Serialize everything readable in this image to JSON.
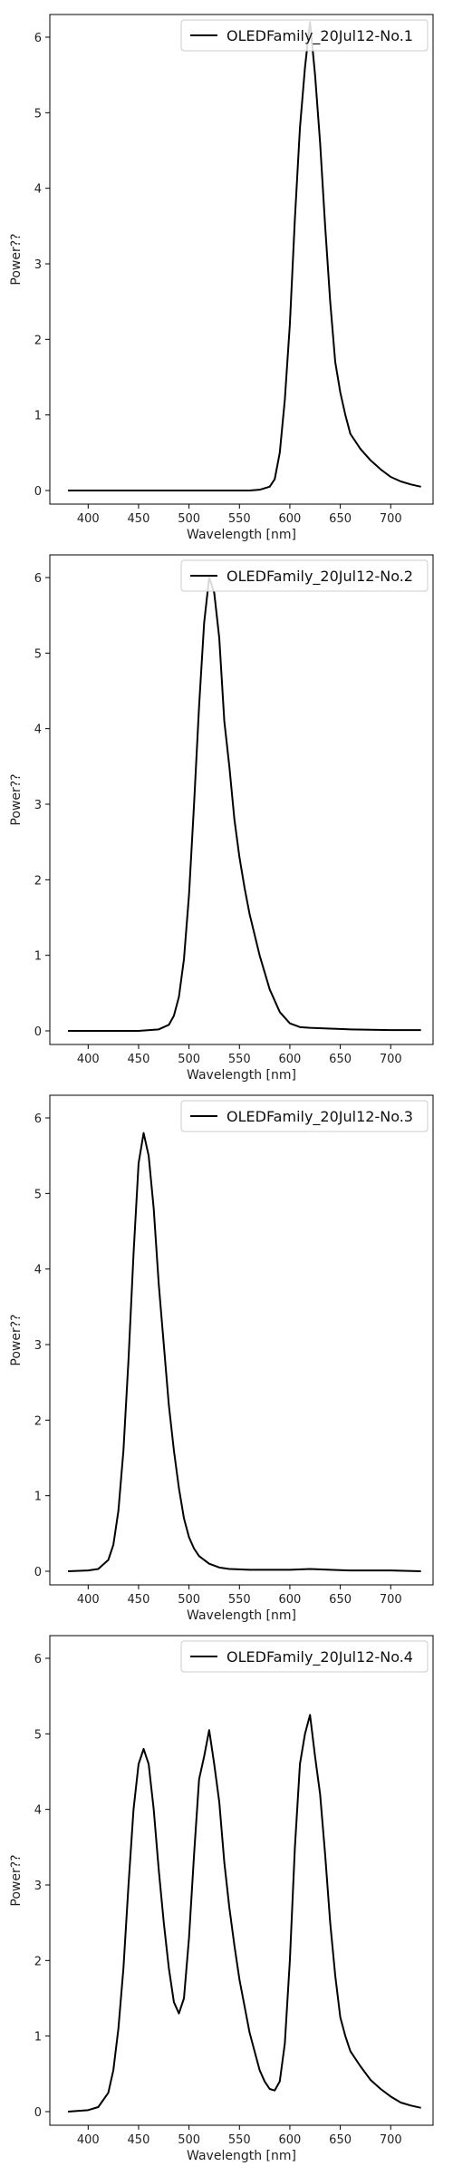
{
  "chart_data": [
    {
      "type": "line",
      "xlabel": "Wavelength [nm]",
      "ylabel": "Power??",
      "xlim": [
        362,
        742
      ],
      "ylim": [
        -0.18,
        6.3
      ],
      "xticks": [
        400,
        450,
        500,
        550,
        600,
        650,
        700
      ],
      "yticks": [
        0,
        1,
        2,
        3,
        4,
        5,
        6
      ],
      "legend_position": "top-right",
      "series": [
        {
          "name": "OLEDFamily_20Jul12-No.1",
          "color": "#000000",
          "x": [
            380,
            560,
            570,
            580,
            585,
            590,
            595,
            600,
            605,
            610,
            615,
            620,
            625,
            630,
            635,
            640,
            645,
            650,
            655,
            660,
            670,
            680,
            690,
            700,
            710,
            720,
            730
          ],
          "y": [
            0,
            0,
            0.01,
            0.05,
            0.15,
            0.5,
            1.2,
            2.2,
            3.6,
            4.8,
            5.6,
            6.2,
            5.5,
            4.6,
            3.5,
            2.5,
            1.7,
            1.3,
            1.0,
            0.75,
            0.55,
            0.4,
            0.28,
            0.18,
            0.12,
            0.08,
            0.05
          ]
        }
      ]
    },
    {
      "type": "line",
      "xlabel": "Wavelength [nm]",
      "ylabel": "Power??",
      "xlim": [
        362,
        742
      ],
      "ylim": [
        -0.18,
        6.3
      ],
      "xticks": [
        400,
        450,
        500,
        550,
        600,
        650,
        700
      ],
      "yticks": [
        0,
        1,
        2,
        3,
        4,
        5,
        6
      ],
      "legend_position": "top-right",
      "series": [
        {
          "name": "OLEDFamily_20Jul12-No.2",
          "color": "#000000",
          "x": [
            380,
            450,
            470,
            480,
            485,
            490,
            495,
            500,
            505,
            510,
            515,
            520,
            525,
            530,
            535,
            540,
            545,
            550,
            555,
            560,
            570,
            580,
            590,
            600,
            610,
            620,
            640,
            660,
            700,
            730
          ],
          "y": [
            0,
            0,
            0.02,
            0.08,
            0.2,
            0.45,
            0.95,
            1.8,
            3.0,
            4.3,
            5.4,
            6.0,
            5.8,
            5.2,
            4.1,
            3.5,
            2.8,
            2.3,
            1.9,
            1.55,
            1.0,
            0.55,
            0.25,
            0.1,
            0.05,
            0.04,
            0.03,
            0.02,
            0.01,
            0.01
          ]
        }
      ]
    },
    {
      "type": "line",
      "xlabel": "Wavelength [nm]",
      "ylabel": "Power??",
      "xlim": [
        362,
        742
      ],
      "ylim": [
        -0.18,
        6.3
      ],
      "xticks": [
        400,
        450,
        500,
        550,
        600,
        650,
        700
      ],
      "yticks": [
        0,
        1,
        2,
        3,
        4,
        5,
        6
      ],
      "legend_position": "top-right",
      "series": [
        {
          "name": "OLEDFamily_20Jul12-No.3",
          "color": "#000000",
          "x": [
            380,
            400,
            410,
            420,
            425,
            430,
            435,
            440,
            445,
            450,
            455,
            460,
            465,
            470,
            475,
            480,
            485,
            490,
            495,
            500,
            505,
            510,
            520,
            530,
            540,
            560,
            580,
            600,
            620,
            640,
            660,
            700,
            730
          ],
          "y": [
            0,
            0.01,
            0.03,
            0.15,
            0.35,
            0.8,
            1.6,
            2.8,
            4.2,
            5.4,
            5.8,
            5.5,
            4.8,
            3.8,
            3.0,
            2.2,
            1.6,
            1.1,
            0.7,
            0.45,
            0.3,
            0.2,
            0.1,
            0.05,
            0.03,
            0.02,
            0.02,
            0.02,
            0.03,
            0.02,
            0.01,
            0.01,
            0.0
          ]
        }
      ]
    },
    {
      "type": "line",
      "xlabel": "Wavelength [nm]",
      "ylabel": "Power??",
      "xlim": [
        362,
        742
      ],
      "ylim": [
        -0.18,
        6.3
      ],
      "xticks": [
        400,
        450,
        500,
        550,
        600,
        650,
        700
      ],
      "yticks": [
        0,
        1,
        2,
        3,
        4,
        5,
        6
      ],
      "legend_position": "top-right",
      "series": [
        {
          "name": "OLEDFamily_20Jul12-No.4",
          "color": "#000000",
          "x": [
            380,
            400,
            410,
            420,
            425,
            430,
            435,
            440,
            445,
            450,
            455,
            460,
            465,
            470,
            475,
            480,
            485,
            490,
            495,
            500,
            505,
            510,
            515,
            520,
            525,
            530,
            535,
            540,
            545,
            550,
            555,
            560,
            565,
            570,
            575,
            580,
            585,
            590,
            595,
            600,
            605,
            610,
            615,
            620,
            625,
            630,
            635,
            640,
            645,
            650,
            655,
            660,
            670,
            680,
            690,
            700,
            710,
            720,
            730
          ],
          "y": [
            0,
            0.02,
            0.06,
            0.25,
            0.55,
            1.1,
            1.9,
            3.0,
            4.0,
            4.6,
            4.8,
            4.6,
            4.0,
            3.2,
            2.5,
            1.9,
            1.45,
            1.3,
            1.5,
            2.3,
            3.4,
            4.4,
            4.7,
            5.05,
            4.6,
            4.1,
            3.3,
            2.7,
            2.2,
            1.75,
            1.4,
            1.05,
            0.8,
            0.55,
            0.4,
            0.3,
            0.28,
            0.4,
            0.9,
            2.0,
            3.5,
            4.6,
            5.0,
            5.25,
            4.7,
            4.2,
            3.4,
            2.5,
            1.8,
            1.25,
            1.0,
            0.8,
            0.6,
            0.42,
            0.3,
            0.2,
            0.12,
            0.08,
            0.05
          ]
        }
      ]
    }
  ]
}
